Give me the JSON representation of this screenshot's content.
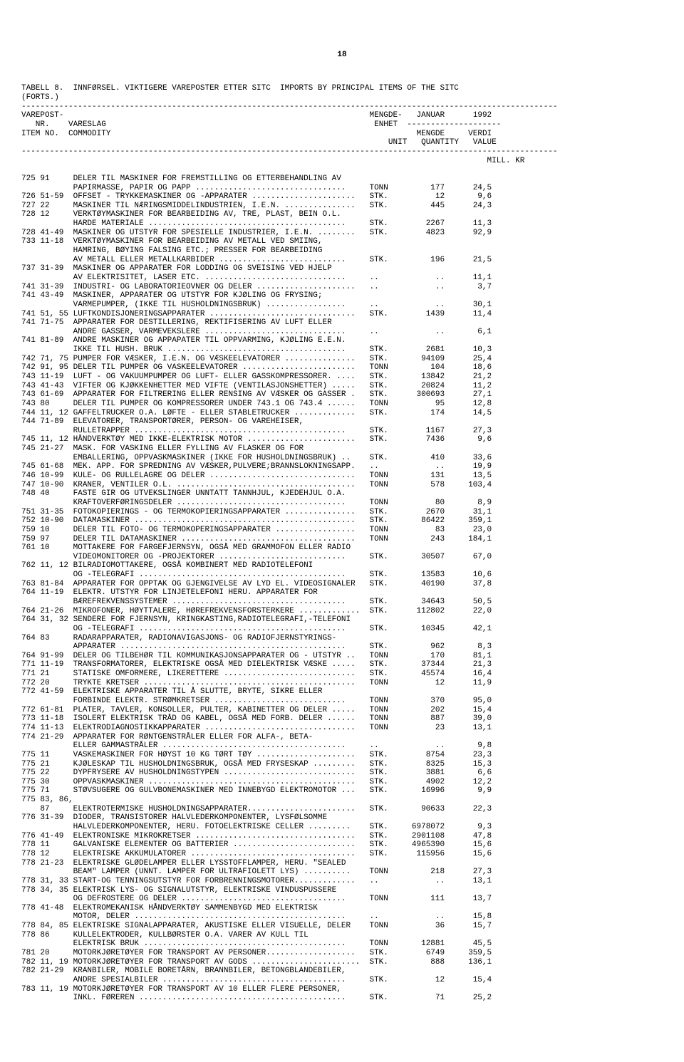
{
  "page_number": "18",
  "table_title_line1": "TABELL 8.  INNFØRSEL. VIKTIGERE VAREPOSTER ETTER SITC  IMPORTS BY PRINCIPAL ITEMS OF THE SITC",
  "table_title_line2": "(FORTS.)",
  "header": {
    "col1": "VAREPOST-",
    "col2": "MENGDE-",
    "col3": "JANUAR",
    "col4": "1992",
    "row2_1": "   NR.",
    "row2_2": "VARESLAG",
    "row2_3": "ENHET",
    "row3_1": "ITEM NO.",
    "row3_2": "COMMODITY",
    "row3_3": "MENGDE",
    "row3_4": "VERDI",
    "row4_1": "UNIT",
    "row4_2": "QUANTITY",
    "row4_3": "VALUE",
    "millkr": "MILL. KR"
  },
  "rows": [
    {
      "c": "725 91",
      "d": "DELER TIL MASKINER FOR FREMSTILLING OG ETTERBEHANDLING AV",
      "u": "",
      "q": "",
      "v": ""
    },
    {
      "c": "",
      "d": "PAPIRMASSE, PAPIR OG PAPP ................................",
      "u": "TONN",
      "q": "177",
      "v": "24,5"
    },
    {
      "c": "726 51-59",
      "d": "OFFSET - TRYKKEMASKINER OG -APPARATER ......................",
      "u": "STK.",
      "q": "12",
      "v": "9,6"
    },
    {
      "c": "727 22",
      "d": "MASKINER TIL NÆRINGSMIDDELINDUSTRIEN, I.E.N. ...............",
      "u": "STK.",
      "q": "445",
      "v": "24,3"
    },
    {
      "c": "728 12",
      "d": "VERKTØYMASKINER FOR BEARBEIDING AV, TRE, PLAST, BEIN O.L.",
      "u": "",
      "q": "",
      "v": ""
    },
    {
      "c": "",
      "d": "HARDE MATERIALE ..........................................",
      "u": "STK.",
      "q": "2267",
      "v": "11,3"
    },
    {
      "c": "728 41-49",
      "d": "MASKINER OG UTSTYR FOR SPESIELLE INDUSTRIER, I.E.N. ........",
      "u": "STK.",
      "q": "4823",
      "v": "92,9"
    },
    {
      "c": "733 11-18",
      "d": "VERKTØYMASKINER FOR BEARBEIDING AV METALL VED SMIING,",
      "u": "",
      "q": "",
      "v": ""
    },
    {
      "c": "",
      "d": "HAMRING, BØYING FALSING ETC.; PRESSER FOR BEARBEIDING",
      "u": "",
      "q": "",
      "v": ""
    },
    {
      "c": "",
      "d": "AV METALL ELLER METALLKARBIDER ...........................",
      "u": "STK.",
      "q": "196",
      "v": "21,5"
    },
    {
      "c": "737 31-39",
      "d": "MASKINER OG APPARATER FOR LODDING OG SVEISING VED HJELP",
      "u": "",
      "q": "",
      "v": ""
    },
    {
      "c": "",
      "d": "AV ELEKTRISITET, LASER ETC. ..............................",
      "u": "..",
      "q": "..",
      "v": "11,1"
    },
    {
      "c": "741 31-39",
      "d": "INDUSTRI- OG LABORATORIEOVNER OG DELER .....................",
      "u": "..",
      "q": "..",
      "v": "3,7"
    },
    {
      "c": "741 43-49",
      "d": "MASKINER, APPARATER OG UTSTYR FOR KJØLING OG FRYSING;",
      "u": "",
      "q": "",
      "v": ""
    },
    {
      "c": "",
      "d": "VARMEPUMPER, (IKKE TIL HUSHOLDNINGSBRUK) .................",
      "u": "..",
      "q": "..",
      "v": "30,1"
    },
    {
      "c": "741 51, 55",
      "d": "LUFTKONDISJONERINGSAPPARATER ...............................",
      "u": "STK.",
      "q": "1439",
      "v": "11,4"
    },
    {
      "c": "741 71-75",
      "d": "APPARATER FOR DESTILLERING, REKTIFISERING AV LUFT ELLER",
      "u": "",
      "q": "",
      "v": ""
    },
    {
      "c": "",
      "d": "ANDRE GASSER, VARMEVEKSLERE ..............................",
      "u": "..",
      "q": "..",
      "v": "6,1"
    },
    {
      "c": "741 81-89",
      "d": "ANDRE MASKINER OG APPAPATER TIL OPPVARMING, KJØLING E.E.N.",
      "u": "",
      "q": "",
      "v": ""
    },
    {
      "c": "",
      "d": "IKKE TIL HUSH. BRUK ......................................",
      "u": "STK.",
      "q": "2681",
      "v": "10,3"
    },
    {
      "c": "742 71, 75",
      "d": "PUMPER FOR VÆSKER, I.E.N. OG VÆSKEELEVATORER ...............",
      "u": "STK.",
      "q": "94109",
      "v": "25,4"
    },
    {
      "c": "742 91, 95",
      "d": "DELER TIL PUMPER OG VASKEELEVATORER ........................",
      "u": "TONN",
      "q": "104",
      "v": "18,6"
    },
    {
      "c": "743 11-19",
      "d": "LUFT - OG VAKUUMPUMPER OG LUFT- ELLER GASSKOMPRESSORER. ....",
      "u": "STK.",
      "q": "13842",
      "v": "21,2"
    },
    {
      "c": "743 41-43",
      "d": "VIFTER OG KJØKKENHETTER MED VIFTE (VENTILASJONSHETTER) .....",
      "u": "STK.",
      "q": "20824",
      "v": "11,2"
    },
    {
      "c": "743 61-69",
      "d": "APPARATER FOR FILTRERING ELLER RENSING AV VÆSKER OG GASSER .",
      "u": "STK.",
      "q": "300693",
      "v": "27,1"
    },
    {
      "c": "743 80",
      "d": "DELER TIL PUMPER OG KOMPRESSORER UNDER 743.1 OG 743.4 ......",
      "u": "TONN",
      "q": "95",
      "v": "12,8"
    },
    {
      "c": "744 11, 12",
      "d": "GAFFELTRUCKER O.A. LØFTE - ELLER STABLETRUCKER .............",
      "u": "STK.",
      "q": "174",
      "v": "14,5"
    },
    {
      "c": "744 71-89",
      "d": "ELEVATORER, TRANSPORTØRER, PERSON- OG VAREHEISER,",
      "u": "",
      "q": "",
      "v": ""
    },
    {
      "c": "",
      "d": "RULLETRAPPER .............................................",
      "u": "STK.",
      "q": "1167",
      "v": "27,3"
    },
    {
      "c": "745 11, 12",
      "d": "HÅNDVERKTØY MED IKKE-ELEKTRISK MOTOR .......................",
      "u": "STK.",
      "q": "7436",
      "v": "9,6"
    },
    {
      "c": "745 21-27",
      "d": "MASK. FOR VASKING ELLER FYLLING AV FLASKER OG FOR",
      "u": "",
      "q": "",
      "v": ""
    },
    {
      "c": "",
      "d": "EMBALLERING, OPPVASKMASKINER (IKKE FOR HUSHOLDNINGSBRUK) ..",
      "u": "STK.",
      "q": "410",
      "v": "33,6"
    },
    {
      "c": "745 61-68",
      "d": "MEK. APP. FOR SPREDNING AV VÆSKER,PULVERE;BRANNSLOKNINGSAPP.",
      "u": "..",
      "q": "..",
      "v": "19,9"
    },
    {
      "c": "746 10-99",
      "d": "KULE- OG RULLELAGRE OG DELER ...............................",
      "u": "TONN",
      "q": "131",
      "v": "13,5"
    },
    {
      "c": "747 10-90",
      "d": "KRANER, VENTILER O.L. ......................................",
      "u": "TONN",
      "q": "578",
      "v": "103,4"
    },
    {
      "c": "748 40",
      "d": "FASTE GIR OG UTVEKSLINGER UNNTATT TANNHJUL, KJEDEHJUL O.A.",
      "u": "",
      "q": "",
      "v": ""
    },
    {
      "c": "",
      "d": "KRAFTOVERFØRINGSDELER ....................................",
      "u": "TONN",
      "q": "80",
      "v": "8,9"
    },
    {
      "c": "751 31-35",
      "d": "FOTOKOPIERINGS - OG TERMOKOPIERINGSAPPARATER ...............",
      "u": "STK.",
      "q": "2670",
      "v": "31,1"
    },
    {
      "c": "752 10-90",
      "d": "DATAMASKINER ...............................................",
      "u": "STK.",
      "q": "86422",
      "v": "359,1"
    },
    {
      "c": "759 10",
      "d": "DELER TIL FOTO- OG TERMOKOPERINGSAPPARATER .................",
      "u": "TONN",
      "q": "83",
      "v": "23,0"
    },
    {
      "c": "759 97",
      "d": "DELER TIL DATAMASKINER .....................................",
      "u": "TONN",
      "q": "243",
      "v": "184,1"
    },
    {
      "c": "761 10",
      "d": "MOTTAKERE FOR FARGEFJERNSYN, OGSÅ MED GRAMMOFON ELLER RADIO",
      "u": "",
      "q": "",
      "v": ""
    },
    {
      "c": "",
      "d": "VIDEOMONITORER OG -PROJEKTORER ...........................",
      "u": "STK.",
      "q": "30507",
      "v": "67,0"
    },
    {
      "c": "762 11, 12",
      "d": "BILRADIOMOTTAKERE, OGSÅ KOMBINERT MED RADIOTELEFONI",
      "u": "",
      "q": "",
      "v": ""
    },
    {
      "c": "",
      "d": "OG -TELEGRAFI ............................................",
      "u": "STK.",
      "q": "13583",
      "v": "10,6"
    },
    {
      "c": "763 81-84",
      "d": "APPARATER FOR OPPTAK OG GJENGIVELSE AV LYD EL. VIDEOSIGNALER",
      "u": "STK.",
      "q": "40190",
      "v": "37,8"
    },
    {
      "c": "764 11-19",
      "d": "ELEKTR. UTSTYR FOR LINJETELEFONI HERU. APPARATER FOR",
      "u": "",
      "q": "",
      "v": ""
    },
    {
      "c": "",
      "d": "BÆREFREKVENSSYSTEMER .....................................",
      "u": "STK.",
      "q": "34643",
      "v": "50,5"
    },
    {
      "c": "764 21-26",
      "d": "MIKROFONER, HØYTTALERE, HØREFREKVENSFORSTERKERE .............",
      "u": "STK.",
      "q": "112802",
      "v": "22,0"
    },
    {
      "c": "764 31, 32",
      "d": "SENDERE FOR FJERNSYN, KRINGKASTING,RADIOTELEGRAFI,-TELEFONI",
      "u": "",
      "q": "",
      "v": ""
    },
    {
      "c": "",
      "d": "OG -TELEGRAFI ............................................",
      "u": "STK.",
      "q": "10345",
      "v": "42,1"
    },
    {
      "c": "764 83",
      "d": "RADARAPPARATER, RADIONAVIGASJONS- OG RADIOFJERNSTYRINGS-",
      "u": "",
      "q": "",
      "v": ""
    },
    {
      "c": "",
      "d": "APPARATER ................................................",
      "u": "STK.",
      "q": "962",
      "v": "8,3"
    },
    {
      "c": "764 91-99",
      "d": "DELER OG TILBEHØR TIL KOMMUNIKASJONSAPPARATER OG - UTSTYR ..",
      "u": "TONN",
      "q": "170",
      "v": "81,1"
    },
    {
      "c": "771 11-19",
      "d": "TRANSFORMATORER, ELEKTRISKE OGSÅ MED DIELEKTRISK VÆSKE .....",
      "u": "STK.",
      "q": "37344",
      "v": "21,3"
    },
    {
      "c": "771 21",
      "d": "STATISKE OMFORMERE, LIKERETTERE ............................",
      "u": "STK.",
      "q": "45574",
      "v": "16,4"
    },
    {
      "c": "772 20",
      "d": "TRYKTE KRETSER .............................................",
      "u": "TONN",
      "q": "12",
      "v": "11,9"
    },
    {
      "c": "772 41-59",
      "d": "ELEKTRISKE APPARATER TIL Å SLUTTE, BRYTE, SIKRE ELLER",
      "u": "",
      "q": "",
      "v": ""
    },
    {
      "c": "",
      "d": "FORBINDE ELEKTR. STRØMKRETSER ............................",
      "u": "TONN",
      "q": "370",
      "v": "95,0"
    },
    {
      "c": "772 61-81",
      "d": "PLATER, TAVLER, KONSOLLER, PULTER, KABINETTER OG DELER .....",
      "u": "TONN",
      "q": "202",
      "v": "15,4"
    },
    {
      "c": "773 11-18",
      "d": "ISOLERT ELEKTRISK TRÅD OG KABEL, OGSÅ MED FORB. DELER ......",
      "u": "TONN",
      "q": "887",
      "v": "39,0"
    },
    {
      "c": "774 11-13",
      "d": "ELEKTRODIAGNOSTIKKAPPARATER ................................",
      "u": "TONN",
      "q": "23",
      "v": "13,1"
    },
    {
      "c": "774 21-29",
      "d": "APPARATER FOR RØNTGENSTRÅLER ELLER FOR ALFA-, BETA-",
      "u": "",
      "q": "",
      "v": ""
    },
    {
      "c": "",
      "d": "ELLER GAMMASTRÅLER .......................................",
      "u": "..",
      "q": "..",
      "v": "9,8"
    },
    {
      "c": "775 11",
      "d": "VASKEMASKINER FOR HØYST 10 KG TØRT TØY .....................",
      "u": "STK.",
      "q": "8754",
      "v": "23,3"
    },
    {
      "c": "775 21",
      "d": "KJØLESKAP TIL HUSHOLDNINGSBRUK, OGSÅ MED FRYSESKAP .........",
      "u": "STK.",
      "q": "8325",
      "v": "15,3"
    },
    {
      "c": "775 22",
      "d": "DYPFRYSERE AV HUSHOLDNINGSTYPEN ............................",
      "u": "STK.",
      "q": "3881",
      "v": "6,6"
    },
    {
      "c": "775 30",
      "d": "OPPVASKMASKINER ............................................",
      "u": "STK.",
      "q": "4902",
      "v": "12,2"
    },
    {
      "c": "775 71",
      "d": "STØVSUGERE OG GULVBONEMASKINER MED INNEBYGD ELEKTROMOTOR ...",
      "u": "STK.",
      "q": "16996",
      "v": "9,9"
    },
    {
      "c": "775 83, 86,",
      "d": "",
      "u": "",
      "q": "",
      "v": ""
    },
    {
      "c": "    87",
      "d": "ELEKTROTERMISKE HUSHOLDNINGSAPPARATER.......................",
      "u": "STK.",
      "q": "90633",
      "v": "22,3"
    },
    {
      "c": "776 31-39",
      "d": "DIODER, TRANSISTORER HALVLEDERKOMPONENTER, LYSFØLSOMME",
      "u": "",
      "q": "",
      "v": ""
    },
    {
      "c": "",
      "d": "HALVLEDERKOMPONENTER, HERU. FOTOELEKTRISKE CELLER .........",
      "u": "STK.",
      "q": "6978072",
      "v": "9,3"
    },
    {
      "c": "776 41-49",
      "d": "ELEKTRONISKE MIKROKRETSER ..................................",
      "u": "STK.",
      "q": "2901108",
      "v": "47,8"
    },
    {
      "c": "778 11",
      "d": "GALVANISKE ELEMENTER OG BATTERIER ..........................",
      "u": "STK.",
      "q": "4965390",
      "v": "15,6"
    },
    {
      "c": "778 12",
      "d": "ELEKTRISKE AKKUMULATORER ...................................",
      "u": "STK.",
      "q": "115956",
      "v": "15,6"
    },
    {
      "c": "778 21-23",
      "d": "ELEKTRISKE GLØDELAMPER ELLER LYSSTOFFLAMPER, HERU. \"SEALED",
      "u": "",
      "q": "",
      "v": ""
    },
    {
      "c": "",
      "d": "BEAM\" LAMPER (UNNT. LAMPER FOR ULTRAFIOLETT LYS) ..........",
      "u": "TONN",
      "q": "218",
      "v": "27,3"
    },
    {
      "c": "778 31, 33",
      "d": "START-OG TENNINGSUTSTYR FOR FORBRENNINGSMOTORER.............",
      "u": "..",
      "q": "..",
      "v": "13,1"
    },
    {
      "c": "778 34, 35",
      "d": "ELEKTRISK LYS- OG SIGNALUTSTYR, ELEKTRISKE VINDUSPUSSERE",
      "u": "",
      "q": "",
      "v": ""
    },
    {
      "c": "",
      "d": "OG DEFROSTERE OG DELER ...................................",
      "u": "TONN",
      "q": "111",
      "v": "13,7"
    },
    {
      "c": "778 41-48",
      "d": "ELEKTROMEKANISK HÅNDVERKTØY SAMMENBYGD MED ELEKTRISK",
      "u": "",
      "q": "",
      "v": ""
    },
    {
      "c": "",
      "d": "MOTOR, DELER .............................................",
      "u": "..",
      "q": "..",
      "v": "15,8"
    },
    {
      "c": "778 84, 85",
      "d": "ELEKTRISKE SIGNALAPPARATER, AKUSTISKE ELLER VISUELLE, DELER",
      "u": "TONN",
      "q": "36",
      "v": "15,7"
    },
    {
      "c": "778 86",
      "d": "KULLELEKTRODER, KULLBØRSTER O.A. VARER AV KULL TIL",
      "u": "",
      "q": "",
      "v": ""
    },
    {
      "c": "",
      "d": "ELEKTRISK BRUK ...........................................",
      "u": "TONN",
      "q": "12881",
      "v": "45,5"
    },
    {
      "c": "781 20",
      "d": "MOTORKJØRETØYER FOR TRANSPORT AV PERSONER...................",
      "u": "STK.",
      "q": "6749",
      "v": "359,5"
    },
    {
      "c": "782 11, 19",
      "d": "MOTORKJØRETØYER FOR TRANSPORT AV GODS .......................",
      "u": "STK.",
      "q": "888",
      "v": "136,1"
    },
    {
      "c": "782 21-29",
      "d": "KRANBILER, MOBILE BORETÅRN, BRANNBILER, BETONGBLANDEBILER,",
      "u": "",
      "q": "",
      "v": ""
    },
    {
      "c": "",
      "d": "ANDRE SPESIALBILER .......................................",
      "u": "STK.",
      "q": "12",
      "v": "15,4"
    },
    {
      "c": "783 11, 19",
      "d": "MOTORKJØRETØYER FOR TRANSPORT AV 10 ELLER FLERE PERSONER,",
      "u": "",
      "q": "",
      "v": ""
    },
    {
      "c": "",
      "d": "INKL. FØREREN ............................................",
      "u": "STK.",
      "q": "71",
      "v": "25,2"
    }
  ]
}
